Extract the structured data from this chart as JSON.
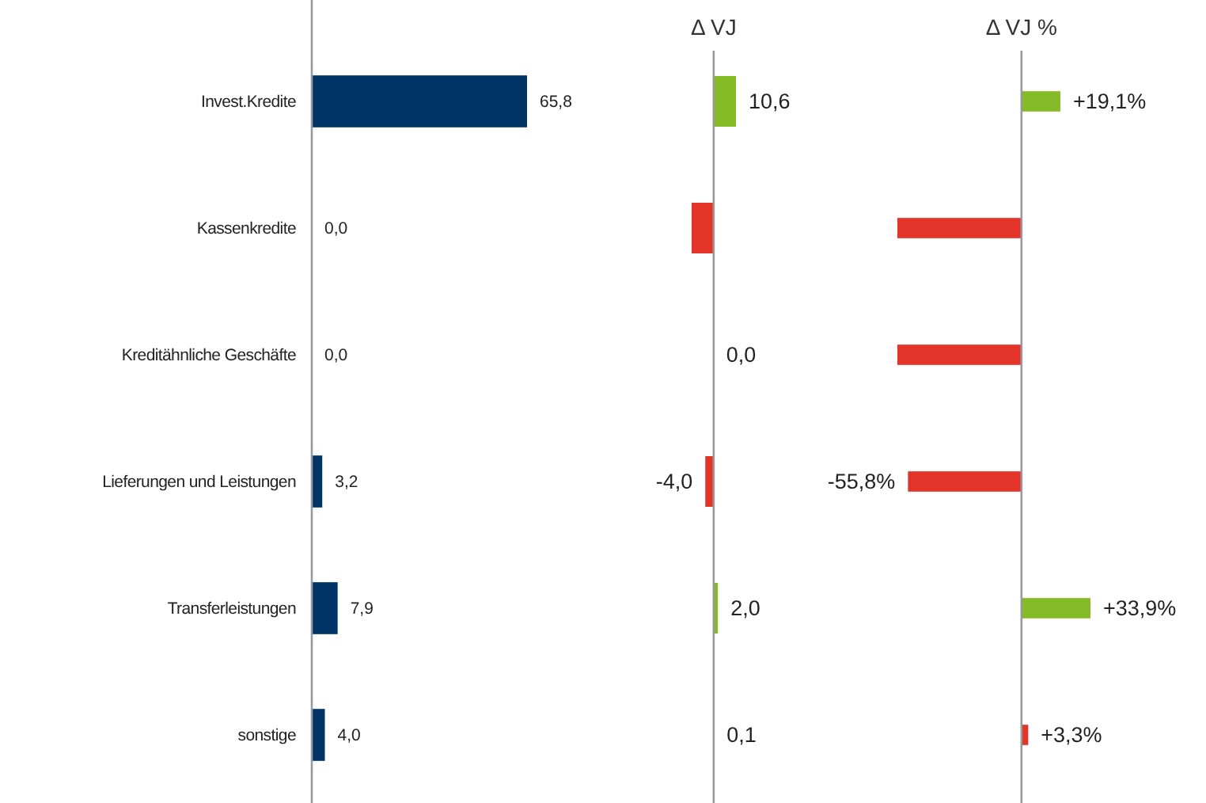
{
  "chart_data": [
    {
      "type": "bar",
      "orientation": "horizontal",
      "categories": [
        "Invest.Kredite",
        "Kassenkredite",
        "Kreditähnliche Geschäfte",
        "Lieferungen und Leistungen",
        "Transferleistungen",
        "sonstige"
      ],
      "values": [
        65.8,
        0.0,
        0.0,
        3.2,
        7.9,
        4.0
      ],
      "colors": [
        "#003366",
        "#003366",
        "#003366",
        "#003366",
        "#003366",
        "#003366"
      ],
      "value_labels": [
        "65,8",
        "0,0",
        "0,0",
        "3,2",
        "7,9",
        "4,0"
      ],
      "tick_labels": "y"
    },
    {
      "type": "bar",
      "orientation": "horizontal",
      "title": "Δ VJ",
      "categories": [
        null,
        null,
        null,
        null,
        null,
        null
      ],
      "values": [
        10.6,
        -10.5,
        0.0,
        -4.0,
        2.0,
        0.1
      ],
      "colors": [
        "#84bb26",
        "#e3342a",
        "#84bb26",
        "#e3342a",
        "#84bb26",
        "#84bb26"
      ],
      "value_labels": [
        "10,6",
        null,
        "0,0",
        "-4,0",
        "2,0",
        "0,1"
      ],
      "tick_labels": false
    },
    {
      "type": "bar",
      "orientation": "horizontal",
      "title": "Δ VJ %",
      "categories": [
        null,
        null,
        null,
        null,
        null,
        null
      ],
      "values": [
        19.1,
        -61,
        -61,
        -55.8,
        33.9,
        3.3
      ],
      "colors": [
        "#84bb26",
        "#e3342a",
        "#e3342a",
        "#e3342a",
        "#84bb26",
        "#e3342a"
      ],
      "value_labels": [
        "+19,1%",
        null,
        null,
        "-55,8%",
        "+33,9%",
        "+3,3%"
      ],
      "tick_labels": false
    }
  ]
}
